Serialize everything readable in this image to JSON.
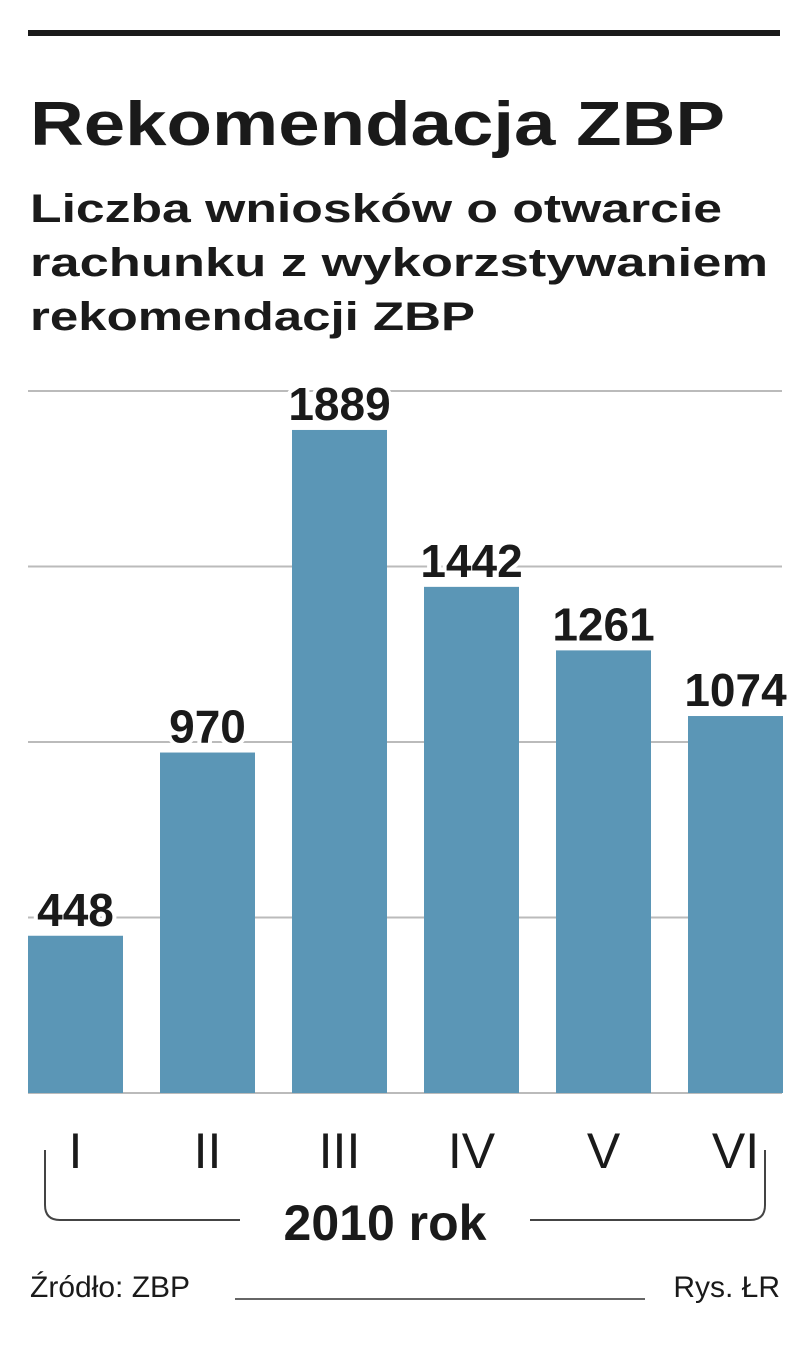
{
  "chart_data": {
    "type": "bar",
    "title": "Rekomendacja ZBP",
    "subtitle": [
      "Liczba wniosków o otwarcie",
      "rachunku z wykorzstywaniem",
      "rekomendacji ZBP"
    ],
    "categories": [
      "I",
      "II",
      "III",
      "IV",
      "V",
      "VI"
    ],
    "values": [
      448,
      970,
      1889,
      1442,
      1261,
      1074
    ],
    "color": "#5b96b6",
    "ylim": [
      0,
      2000
    ],
    "yticks": [
      0,
      500,
      1000,
      1500,
      2000
    ],
    "grid": true,
    "xlabel": "2010 rok",
    "source": "Źródło: ZBP",
    "credit": "Rys. ŁR"
  }
}
